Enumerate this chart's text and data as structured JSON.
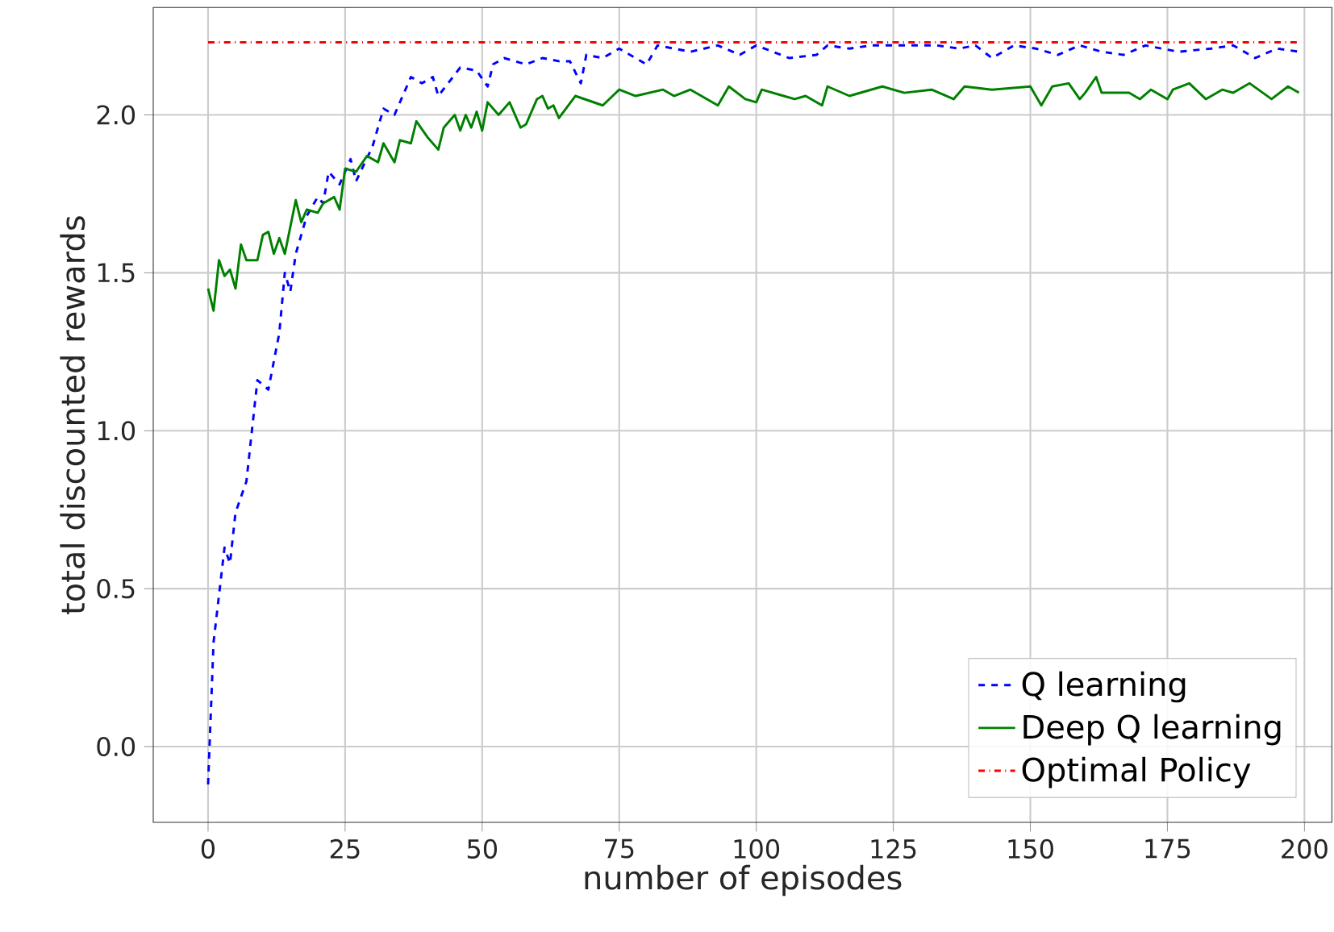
{
  "chart_data": {
    "type": "line",
    "xlabel": "number of episodes",
    "ylabel": "total discounted rewards",
    "xlim": [
      -10,
      205
    ],
    "ylim": [
      -0.24,
      2.34
    ],
    "xticks": [
      0,
      25,
      50,
      75,
      100,
      125,
      150,
      175,
      200
    ],
    "yticks": [
      {
        "value": 0,
        "label": "0.0"
      },
      {
        "value": 0.5,
        "label": "0.5"
      },
      {
        "value": 1,
        "label": "1.0"
      },
      {
        "value": 1.5,
        "label": "1.5"
      },
      {
        "value": 2,
        "label": "2.0"
      }
    ],
    "grid": true,
    "legend": "bottom right",
    "series": [
      {
        "name": "Q learning",
        "color": "#0000ff",
        "line_style": "dashed",
        "x": [
          0,
          1,
          3,
          4,
          5,
          7,
          9,
          11,
          13,
          14,
          15,
          16,
          18,
          20,
          21,
          22,
          24,
          26,
          27,
          30,
          32,
          34,
          35,
          37,
          39,
          41,
          42,
          46,
          49,
          51,
          52,
          54,
          58,
          61,
          64,
          66,
          68,
          69,
          72,
          75,
          80,
          82,
          88,
          93,
          97,
          100,
          106,
          111,
          113,
          117,
          121,
          127,
          133,
          137,
          140,
          143,
          147,
          151,
          155,
          159,
          163,
          167,
          171,
          177,
          183,
          187,
          191,
          195,
          199
        ],
        "values": [
          -0.12,
          0.33,
          0.63,
          0.58,
          0.74,
          0.84,
          1.16,
          1.13,
          1.31,
          1.5,
          1.44,
          1.56,
          1.68,
          1.74,
          1.72,
          1.82,
          1.78,
          1.86,
          1.79,
          1.9,
          2.02,
          2.0,
          2.04,
          2.12,
          2.1,
          2.12,
          2.06,
          2.15,
          2.14,
          2.09,
          2.16,
          2.18,
          2.16,
          2.18,
          2.17,
          2.17,
          2.1,
          2.19,
          2.18,
          2.21,
          2.16,
          2.22,
          2.2,
          2.22,
          2.19,
          2.22,
          2.18,
          2.19,
          2.22,
          2.21,
          2.22,
          2.22,
          2.22,
          2.21,
          2.22,
          2.18,
          2.22,
          2.21,
          2.19,
          2.22,
          2.2,
          2.19,
          2.22,
          2.2,
          2.21,
          2.22,
          2.18,
          2.21,
          2.2
        ]
      },
      {
        "name": "Deep  Q learning",
        "color": "#008000",
        "line_style": "solid",
        "x": [
          0,
          1,
          2,
          3,
          4,
          5,
          6,
          7,
          9,
          10,
          11,
          12,
          13,
          14,
          16,
          17,
          18,
          20,
          21,
          23,
          24,
          25,
          27,
          29,
          31,
          32,
          34,
          35,
          37,
          38,
          40,
          42,
          43,
          45,
          46,
          47,
          48,
          49,
          50,
          51,
          53,
          55,
          57,
          58,
          60,
          61,
          62,
          63,
          64,
          67,
          72,
          75,
          78,
          83,
          85,
          88,
          93,
          95,
          98,
          100,
          101,
          105,
          107,
          109,
          112,
          113,
          117,
          123,
          127,
          132,
          136,
          138,
          143,
          150,
          152,
          154,
          157,
          159,
          160,
          162,
          163,
          168,
          170,
          172,
          175,
          176,
          179,
          182,
          185,
          187,
          190,
          194,
          197,
          199
        ],
        "values": [
          1.45,
          1.38,
          1.54,
          1.49,
          1.51,
          1.45,
          1.59,
          1.54,
          1.54,
          1.62,
          1.63,
          1.56,
          1.61,
          1.56,
          1.73,
          1.66,
          1.7,
          1.69,
          1.72,
          1.74,
          1.7,
          1.83,
          1.82,
          1.87,
          1.85,
          1.91,
          1.85,
          1.92,
          1.91,
          1.98,
          1.93,
          1.89,
          1.96,
          2.0,
          1.95,
          2.0,
          1.96,
          2.01,
          1.95,
          2.04,
          2.0,
          2.04,
          1.96,
          1.97,
          2.05,
          2.06,
          2.02,
          2.03,
          1.99,
          2.06,
          2.03,
          2.08,
          2.06,
          2.08,
          2.06,
          2.08,
          2.03,
          2.09,
          2.05,
          2.04,
          2.08,
          2.06,
          2.05,
          2.06,
          2.03,
          2.09,
          2.06,
          2.09,
          2.07,
          2.08,
          2.05,
          2.09,
          2.08,
          2.09,
          2.03,
          2.09,
          2.1,
          2.05,
          2.07,
          2.12,
          2.07,
          2.07,
          2.05,
          2.08,
          2.05,
          2.08,
          2.1,
          2.05,
          2.08,
          2.07,
          2.1,
          2.05,
          2.09,
          2.07
        ]
      },
      {
        "name": "Optimal Policy",
        "color": "#ff0000",
        "line_style": "dashdot",
        "x": [
          0,
          199
        ],
        "values": [
          2.23,
          2.23
        ]
      }
    ]
  }
}
